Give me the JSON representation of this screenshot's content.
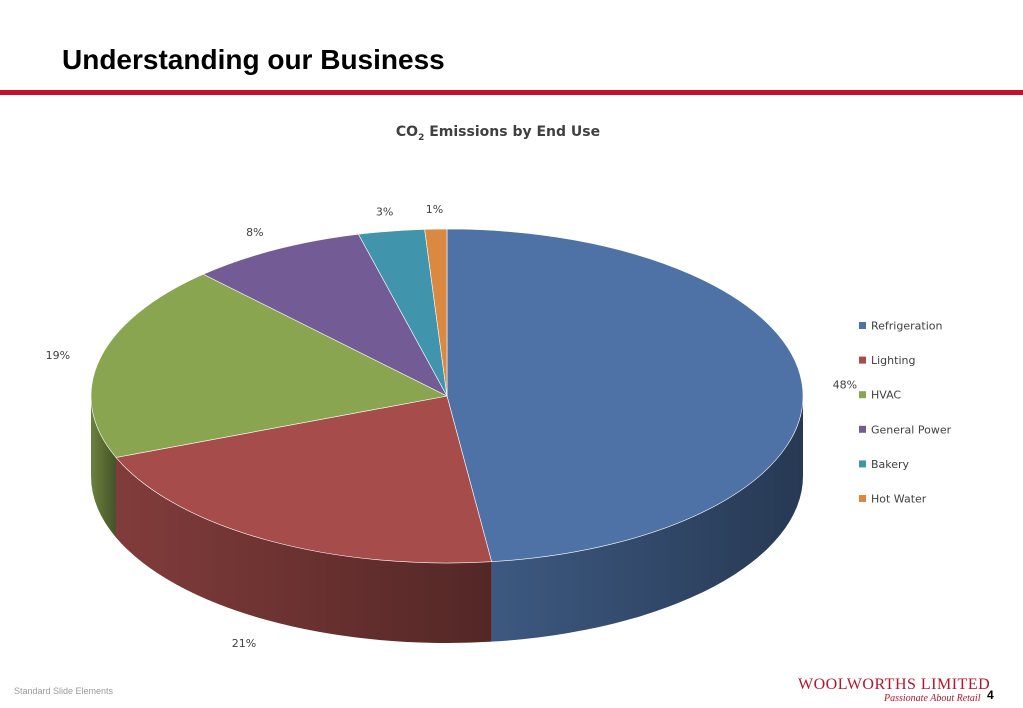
{
  "slide": {
    "title": "Understanding our Business",
    "footer_text": "Standard Slide Elements",
    "page_number": "4",
    "accent_color": "#c8102e"
  },
  "logo": {
    "name": "WOOLWORTHS LIMITED",
    "tagline": "Passionate About Retail"
  },
  "chart_data": {
    "type": "pie",
    "title": "CO2 Emissions by End Use",
    "title_main": "CO",
    "title_sub": "2",
    "title_rest": " Emissions by End Use",
    "style": "3d",
    "legend_position": "right",
    "categories": [
      "Refrigeration",
      "Lighting",
      "HVAC",
      "General Power",
      "Bakery",
      "Hot Water"
    ],
    "values": [
      48,
      21,
      19,
      8,
      3,
      1
    ],
    "labels": [
      "48%",
      "21%",
      "19%",
      "8%",
      "3%",
      "1%"
    ],
    "colors": [
      "#4e72a6",
      "#a64d4b",
      "#8aa550",
      "#735c96",
      "#4095ad",
      "#db8840"
    ]
  }
}
